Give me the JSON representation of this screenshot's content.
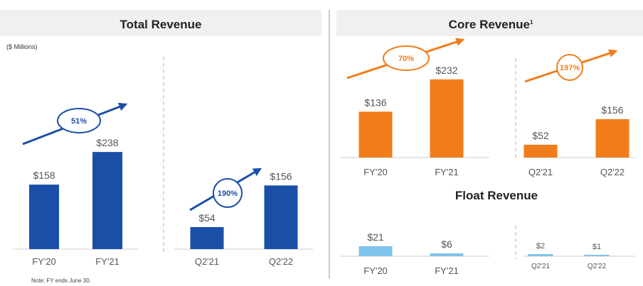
{
  "units_label": "($ Millions)",
  "footnote": "Note: FY ends June 30.",
  "colors": {
    "total_bar": "#1a4fa8",
    "core_bar": "#f07d1a",
    "float_bar": "#7ec3ea",
    "header_bg": "#f0f0f0",
    "axis": "#cccccc"
  },
  "chart_data": [
    {
      "id": "total-annual",
      "panel": "Total Revenue",
      "type": "bar",
      "categories": [
        "FY'20",
        "FY'21"
      ],
      "values": [
        158,
        238
      ],
      "value_labels": [
        "$158",
        "$238"
      ],
      "growth_label": "51%",
      "ylim": [
        0,
        320
      ]
    },
    {
      "id": "total-quarterly",
      "panel": "Total Revenue",
      "type": "bar",
      "categories": [
        "Q2'21",
        "Q2'22"
      ],
      "values": [
        54,
        156
      ],
      "value_labels": [
        "$54",
        "$156"
      ],
      "growth_label": "190%",
      "ylim": [
        0,
        320
      ]
    },
    {
      "id": "core-annual",
      "panel": "Core Revenue",
      "type": "bar",
      "categories": [
        "FY'20",
        "FY'21"
      ],
      "values": [
        136,
        232
      ],
      "value_labels": [
        "$136",
        "$232"
      ],
      "growth_label": "70%",
      "ylim": [
        0,
        320
      ]
    },
    {
      "id": "core-quarterly",
      "panel": "Core Revenue",
      "type": "bar",
      "categories": [
        "Q2'21",
        "Q2'22"
      ],
      "values": [
        52,
        156
      ],
      "value_labels": [
        "$52",
        "$156"
      ],
      "growth_label": "197%",
      "ylim": [
        0,
        320
      ]
    },
    {
      "id": "float-annual",
      "panel": "Float Revenue",
      "type": "bar",
      "categories": [
        "FY'20",
        "FY'21"
      ],
      "values": [
        21,
        6
      ],
      "value_labels": [
        "$21",
        "$6"
      ],
      "ylim": [
        0,
        320
      ]
    },
    {
      "id": "float-quarterly",
      "panel": "Float Revenue",
      "type": "bar",
      "categories": [
        "Q2'21",
        "Q2'22"
      ],
      "values": [
        2,
        1
      ],
      "value_labels": [
        "$2",
        "$1"
      ],
      "ylim": [
        0,
        320
      ]
    }
  ],
  "panels": {
    "total": {
      "title": "Total Revenue"
    },
    "core": {
      "title": "Core Revenue",
      "footnote_marker": "1"
    },
    "float": {
      "title": "Float Revenue"
    }
  }
}
